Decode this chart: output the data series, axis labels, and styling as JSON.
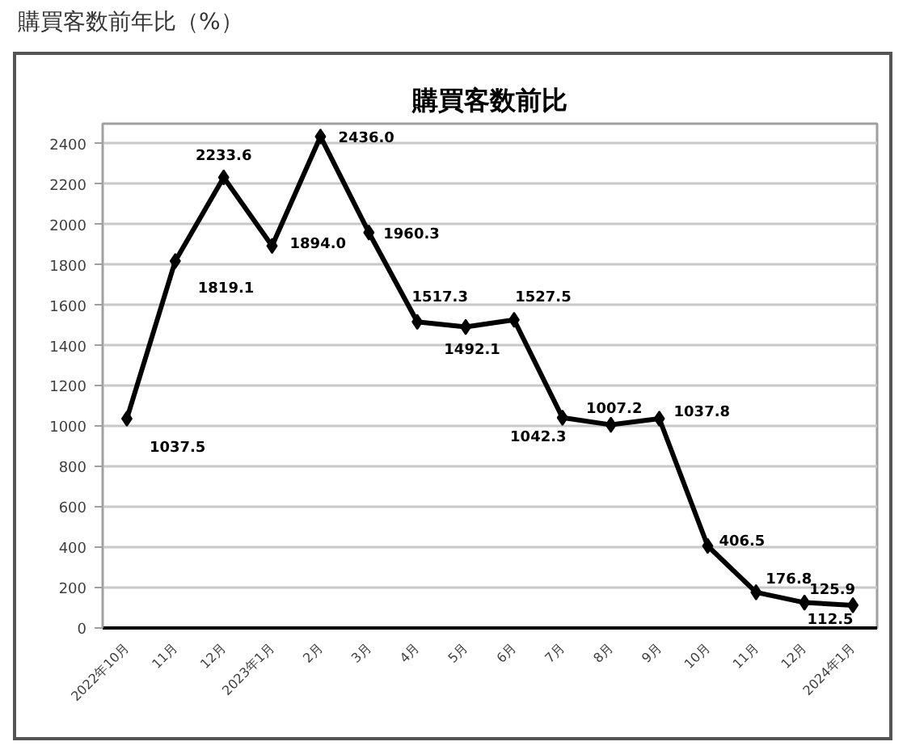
{
  "chart_data": {
    "type": "line",
    "title": "購買客数前年比（%）",
    "subtitle": "購買客数前比",
    "categories": [
      "2022年10月",
      "11月",
      "12月",
      "2023年1月",
      "2月",
      "3月",
      "4月",
      "5月",
      "6月",
      "7月",
      "8月",
      "9月",
      "10月",
      "11月",
      "12月",
      "2024年1月"
    ],
    "series": [
      {
        "color": "#000000",
        "values": [
          1037.5,
          1819.1,
          2233.6,
          1894,
          2436,
          1960.3,
          1517.3,
          1492.1,
          1527.5,
          1042.3,
          1007.2,
          1037.8,
          406.5,
          176.8,
          125.9,
          112.5
        ],
        "value_labels": [
          "1037.5",
          "1819.1",
          "2233.6",
          "1894.0",
          "2436.0",
          "1960.3",
          "1517.3",
          "1492.1",
          "1527.5",
          "1042.3",
          "1007.2",
          "1037.8",
          "406.5",
          "176.8",
          "125.9",
          "112.5"
        ]
      }
    ],
    "ylim": [
      0,
      2500
    ],
    "yticks": [
      0,
      200,
      400,
      600,
      800,
      1000,
      1200,
      1400,
      1600,
      1800,
      2000,
      2200,
      2400
    ],
    "grid": "y",
    "marker": "diamond",
    "line_style": "solid"
  }
}
